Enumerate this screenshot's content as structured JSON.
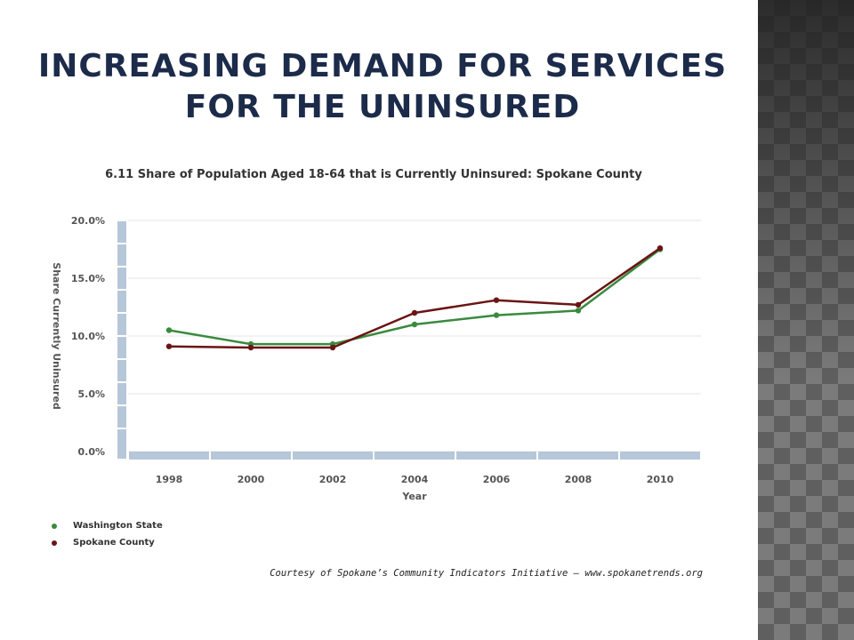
{
  "slide": {
    "title_line1": "Increasing demand for services",
    "title_line2": "for the uninsured",
    "credit": "Courtesy of Spokane’s Community Indicators Initiative – www.spokanetrends.org"
  },
  "colors": {
    "title": "#1c2b4a",
    "washington": "#3a8a3e",
    "spokane": "#6b1414",
    "axis_band": "#b7c7da"
  },
  "chart_data": {
    "type": "line",
    "title": "6.11 Share of Population Aged 18-64 that is Currently Uninsured:  Spokane County",
    "xlabel": "Year",
    "ylabel": "Share Currently Uninsured",
    "x": [
      "1998",
      "2000",
      "2002",
      "2004",
      "2006",
      "2008",
      "2010"
    ],
    "ylim": [
      0,
      20
    ],
    "yticks": [
      "0.0%",
      "5.0%",
      "10.0%",
      "15.0%",
      "20.0%"
    ],
    "grid": true,
    "legend_position": "bottom-left",
    "series": [
      {
        "name": "Washington State",
        "color": "#3a8a3e",
        "values": [
          10.5,
          9.3,
          9.3,
          11.0,
          11.8,
          12.2,
          17.5
        ]
      },
      {
        "name": "Spokane County",
        "color": "#6b1414",
        "values": [
          9.1,
          9.0,
          9.0,
          12.0,
          13.1,
          12.7,
          17.6
        ]
      }
    ]
  }
}
